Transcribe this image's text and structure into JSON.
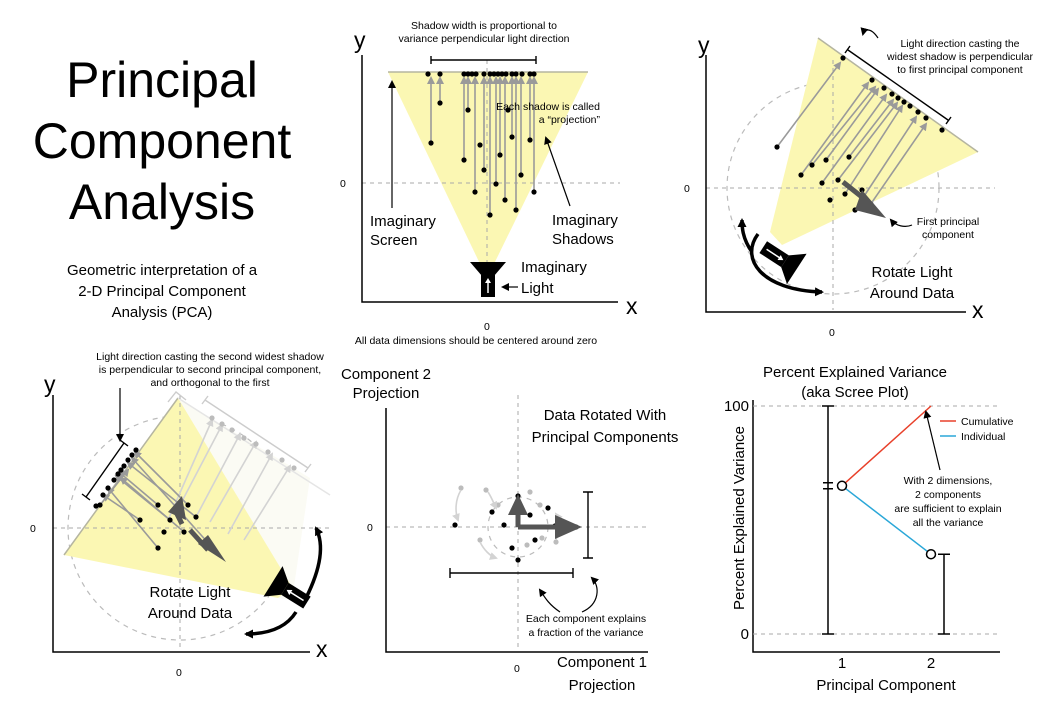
{
  "title": {
    "line1": "Principal",
    "line2": "Component",
    "line3": "Analysis"
  },
  "subtitle": {
    "line1": "Geometric interpretation of a",
    "line2": "2-D Principal Component",
    "line3": "Analysis (PCA)"
  },
  "panel1": {
    "y_axis": "y",
    "x_axis": "x",
    "zero_y": "0",
    "zero_x": "0",
    "note_top_1": "Shadow width is proportional to",
    "note_top_2": "variance perpendicular light direction",
    "note_proj_1": "Each shadow is called",
    "note_proj_2": "a “projection”",
    "screen_1": "Imaginary",
    "screen_2": "Screen",
    "shadows_1": "Imaginary",
    "shadows_2": "Shadows",
    "light_1": "Imaginary",
    "light_2": "Light",
    "centered_note": "All data dimensions should be centered around zero"
  },
  "panel2": {
    "y_axis": "y",
    "x_axis": "x",
    "zero_y": "0",
    "zero_x": "0",
    "note_1": "Light direction casting the",
    "note_2": "widest shadow is perpendicular",
    "note_3": "to first principal component",
    "pc1_1": "First principal",
    "pc1_2": "component",
    "rotate_1": "Rotate Light",
    "rotate_2": "Around Data"
  },
  "panel3": {
    "y_axis": "y",
    "x_axis": "x",
    "zero_y": "0",
    "zero_x": "0",
    "note_1": "Light direction casting the second widest shadow",
    "note_2": "is perpendicular to second principal component,",
    "note_3": "and orthogonal to the first",
    "rotate_1": "Rotate Light",
    "rotate_2": "Around Data"
  },
  "panel4": {
    "y_axis_1": "Component 2",
    "y_axis_2": "Projection",
    "x_axis_1": "Component 1",
    "x_axis_2": "Projection",
    "zero_y": "0",
    "zero_x": "0",
    "rotated_1": "Data Rotated With",
    "rotated_2": "Principal Components",
    "explains_1": "Each component explains",
    "explains_2": "a fraction of the variance"
  },
  "chart_data": {
    "type": "line",
    "title": "Percent Explained Variance",
    "subtitle": "(aka Scree Plot)",
    "xlabel": "Principal Component",
    "ylabel": "Percent Explained Variance",
    "categories": [
      "1",
      "2"
    ],
    "x_ticks": [
      "1",
      "2"
    ],
    "y_ticks": [
      "100",
      "0"
    ],
    "ylim": [
      0,
      100
    ],
    "series": [
      {
        "name": "Cumulative",
        "color": "#e8402a",
        "values": [
          65,
          100
        ]
      },
      {
        "name": "Individual",
        "color": "#2aa7d8",
        "values": [
          65,
          35
        ]
      }
    ],
    "legend_position": "top-right",
    "annotation": [
      "With 2 dimensions,",
      "2 components",
      "are sufficient to explain",
      "all the variance"
    ]
  }
}
